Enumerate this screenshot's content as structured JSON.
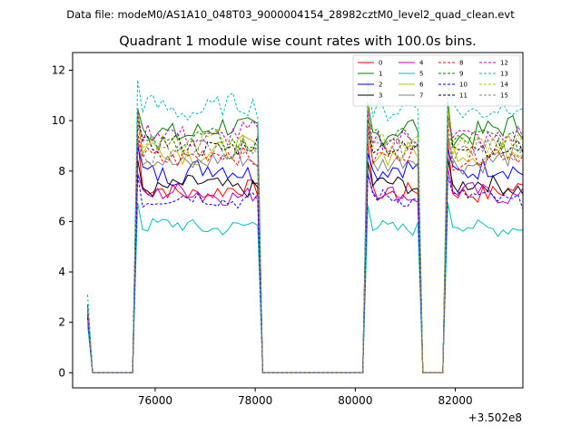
{
  "figure": {
    "suptitle": "Data file: modeM0/AS1A10_048T03_9000004154_28982cztM0_level2_quad_clean.evt"
  },
  "chart_data": {
    "type": "line",
    "title": "Quadrant 1 module wise count rates with 100.0s bins.",
    "xlabel": "",
    "ylabel": "",
    "x_offset_label": "+3.502e8",
    "x_offset": 350200000,
    "xlim": [
      74350,
      83350
    ],
    "ylim": [
      -0.6,
      12.7
    ],
    "xticks": [
      76000,
      78000,
      80000,
      82000
    ],
    "xtick_labels": [
      "76000",
      "78000",
      "80000",
      "82000"
    ],
    "yticks": [
      0,
      2,
      4,
      6,
      8,
      10,
      12
    ],
    "ytick_labels": [
      "0",
      "2",
      "4",
      "6",
      "8",
      "10",
      "12"
    ],
    "legend_loc": "upper right",
    "segments": [
      {
        "x_start": 74650,
        "x_end": 75650
      },
      {
        "x_start": 75650,
        "x_end": 78050
      },
      {
        "x_start": 78050,
        "x_end": 80250
      },
      {
        "x_start": 80250,
        "x_end": 81250
      },
      {
        "x_start": 81250,
        "x_end": 81850
      },
      {
        "x_start": 81850,
        "x_end": 83450
      }
    ],
    "series": [
      {
        "name": "0",
        "color": "#ff0000",
        "dash": "solid",
        "start": 2.2,
        "level": 7.2,
        "amp": 0.35,
        "peak": 9.2
      },
      {
        "name": "1",
        "color": "#008000",
        "dash": "solid",
        "start": 2.5,
        "level": 9.6,
        "amp": 0.5,
        "peak": 10.6
      },
      {
        "name": "2",
        "color": "#0000ff",
        "dash": "solid",
        "start": 2.4,
        "level": 8.0,
        "amp": 0.45,
        "peak": 8.9
      },
      {
        "name": "3",
        "color": "#000000",
        "dash": "solid",
        "start": 2.3,
        "level": 7.4,
        "amp": 0.35,
        "peak": 8.3
      },
      {
        "name": "4",
        "color": "#bf00bf",
        "dash": "solid",
        "start": 2.3,
        "level": 7.1,
        "amp": 0.35,
        "peak": 8.0
      },
      {
        "name": "5",
        "color": "#00bfbf",
        "dash": "solid",
        "start": 1.9,
        "level": 5.8,
        "amp": 0.3,
        "peak": 6.8
      },
      {
        "name": "6",
        "color": "#bfbf00",
        "dash": "solid",
        "start": 2.5,
        "level": 8.8,
        "amp": 0.45,
        "peak": 10.4
      },
      {
        "name": "7",
        "color": "#808080",
        "dash": "solid",
        "start": 2.6,
        "level": 8.4,
        "amp": 0.4,
        "peak": 9.4
      },
      {
        "name": "8",
        "color": "#ff0000",
        "dash": "dashed",
        "start": 2.6,
        "level": 8.6,
        "amp": 0.4,
        "peak": 9.6
      },
      {
        "name": "9",
        "color": "#008000",
        "dash": "dashed",
        "start": 2.7,
        "level": 9.2,
        "amp": 0.4,
        "peak": 10.1
      },
      {
        "name": "10",
        "color": "#0000ff",
        "dash": "dashed",
        "start": 2.2,
        "level": 6.9,
        "amp": 0.3,
        "peak": 7.9
      },
      {
        "name": "11",
        "color": "#000000",
        "dash": "dashed",
        "start": 2.7,
        "level": 9.0,
        "amp": 0.4,
        "peak": 9.9
      },
      {
        "name": "12",
        "color": "#bf00bf",
        "dash": "dashed",
        "start": 2.7,
        "level": 9.4,
        "amp": 0.45,
        "peak": 10.2
      },
      {
        "name": "13",
        "color": "#00bfbf",
        "dash": "dashed",
        "start": 3.1,
        "level": 10.5,
        "amp": 0.45,
        "peak": 11.6
      },
      {
        "name": "14",
        "color": "#bfbf00",
        "dash": "dashed",
        "start": 2.6,
        "level": 9.1,
        "amp": 0.45,
        "peak": 10.0
      },
      {
        "name": "15",
        "color": "#808080",
        "dash": "dashed",
        "start": 2.6,
        "level": 8.8,
        "amp": 0.4,
        "peak": 9.7
      }
    ]
  }
}
